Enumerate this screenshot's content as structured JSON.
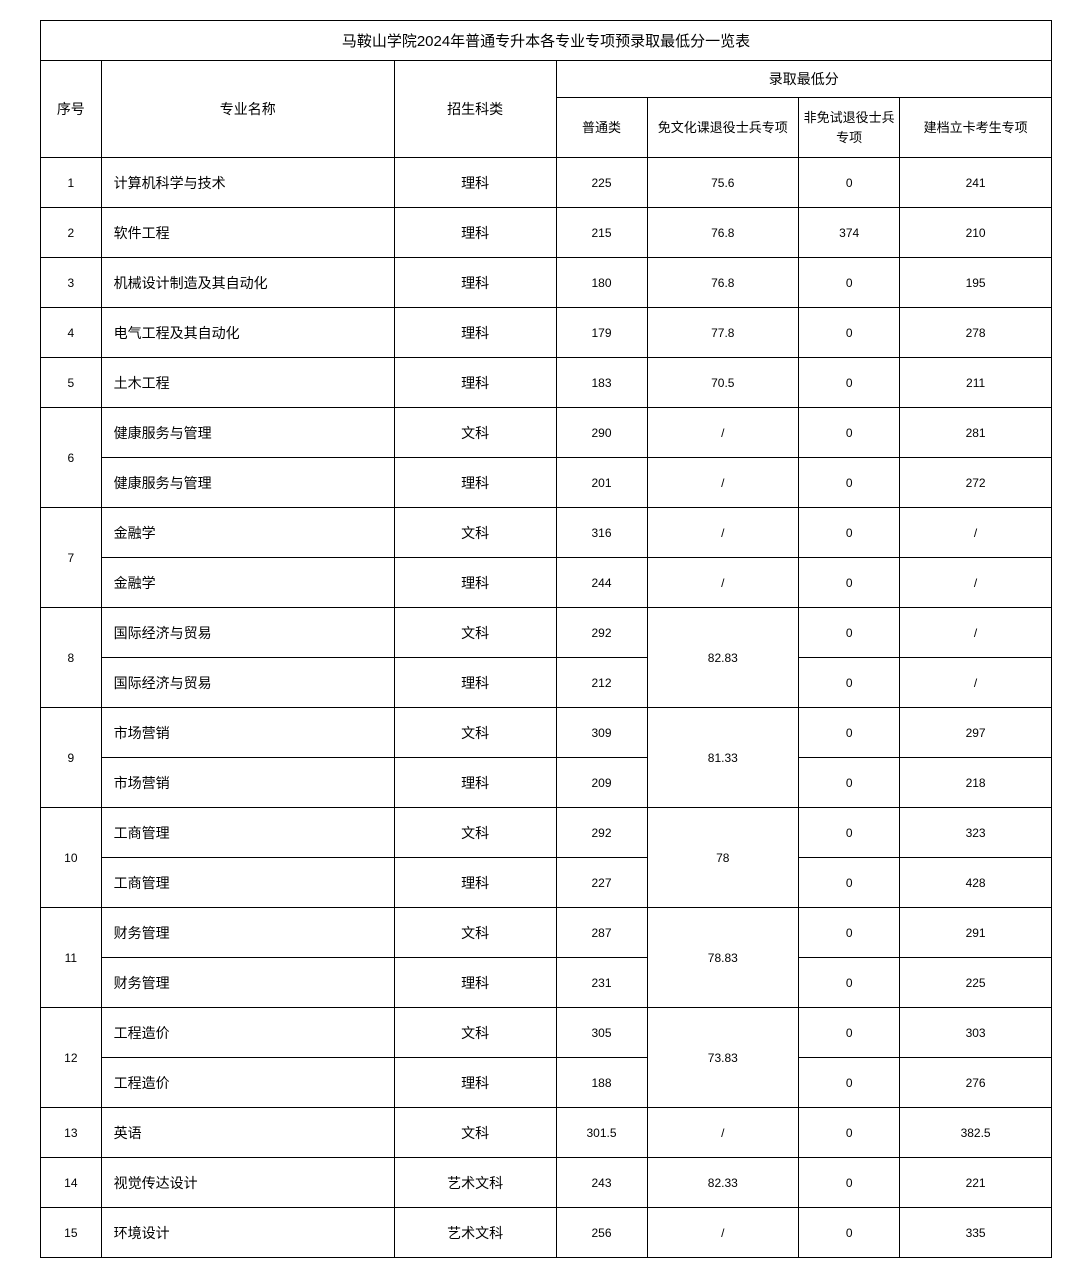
{
  "table": {
    "title": "马鞍山学院2024年普通专升本各专业专项预录取最低分一览表",
    "headers": {
      "seq": "序号",
      "major": "专业名称",
      "category": "招生科类",
      "score_group": "录取最低分",
      "score1": "普通类",
      "score2": "免文化课退役士兵专项",
      "score3": "非免试退役士兵专项",
      "score4": "建档立卡考生专项"
    },
    "rows": [
      {
        "seq": "1",
        "seq_rowspan": 1,
        "major": "计算机科学与技术",
        "category": "理科",
        "s1": "225",
        "s2": "75.6",
        "s2_rowspan": 1,
        "s3": "0",
        "s4": "241"
      },
      {
        "seq": "2",
        "seq_rowspan": 1,
        "major": "软件工程",
        "category": "理科",
        "s1": "215",
        "s2": "76.8",
        "s2_rowspan": 1,
        "s3": "374",
        "s4": "210"
      },
      {
        "seq": "3",
        "seq_rowspan": 1,
        "major": "机械设计制造及其自动化",
        "category": "理科",
        "s1": "180",
        "s2": "76.8",
        "s2_rowspan": 1,
        "s3": "0",
        "s4": "195"
      },
      {
        "seq": "4",
        "seq_rowspan": 1,
        "major": "电气工程及其自动化",
        "category": "理科",
        "s1": "179",
        "s2": "77.8",
        "s2_rowspan": 1,
        "s3": "0",
        "s4": "278"
      },
      {
        "seq": "5",
        "seq_rowspan": 1,
        "major": "土木工程",
        "category": "理科",
        "s1": "183",
        "s2": "70.5",
        "s2_rowspan": 1,
        "s3": "0",
        "s4": "211"
      },
      {
        "seq": "6",
        "seq_rowspan": 2,
        "major": "健康服务与管理",
        "category": "文科",
        "s1": "290",
        "s2": "/",
        "s2_rowspan": 1,
        "s3": "0",
        "s4": "281"
      },
      {
        "seq": null,
        "seq_rowspan": 0,
        "major": "健康服务与管理",
        "category": "理科",
        "s1": "201",
        "s2": "/",
        "s2_rowspan": 1,
        "s3": "0",
        "s4": "272"
      },
      {
        "seq": "7",
        "seq_rowspan": 2,
        "major": "金融学",
        "category": "文科",
        "s1": "316",
        "s2": "/",
        "s2_rowspan": 1,
        "s3": "0",
        "s4": "/"
      },
      {
        "seq": null,
        "seq_rowspan": 0,
        "major": "金融学",
        "category": "理科",
        "s1": "244",
        "s2": "/",
        "s2_rowspan": 1,
        "s3": "0",
        "s4": "/"
      },
      {
        "seq": "8",
        "seq_rowspan": 2,
        "major": "国际经济与贸易",
        "category": "文科",
        "s1": "292",
        "s2": "82.83",
        "s2_rowspan": 2,
        "s3": "0",
        "s4": "/"
      },
      {
        "seq": null,
        "seq_rowspan": 0,
        "major": "国际经济与贸易",
        "category": "理科",
        "s1": "212",
        "s2": null,
        "s2_rowspan": 0,
        "s3": "0",
        "s4": "/"
      },
      {
        "seq": "9",
        "seq_rowspan": 2,
        "major": "市场营销",
        "category": "文科",
        "s1": "309",
        "s2": "81.33",
        "s2_rowspan": 2,
        "s3": "0",
        "s4": "297"
      },
      {
        "seq": null,
        "seq_rowspan": 0,
        "major": "市场营销",
        "category": "理科",
        "s1": "209",
        "s2": null,
        "s2_rowspan": 0,
        "s3": "0",
        "s4": "218"
      },
      {
        "seq": "10",
        "seq_rowspan": 2,
        "major": "工商管理",
        "category": "文科",
        "s1": "292",
        "s2": "78",
        "s2_rowspan": 2,
        "s3": "0",
        "s4": "323"
      },
      {
        "seq": null,
        "seq_rowspan": 0,
        "major": "工商管理",
        "category": "理科",
        "s1": "227",
        "s2": null,
        "s2_rowspan": 0,
        "s3": "0",
        "s4": "428"
      },
      {
        "seq": "11",
        "seq_rowspan": 2,
        "major": "财务管理",
        "category": "文科",
        "s1": "287",
        "s2": "78.83",
        "s2_rowspan": 2,
        "s3": "0",
        "s4": "291"
      },
      {
        "seq": null,
        "seq_rowspan": 0,
        "major": "财务管理",
        "category": "理科",
        "s1": "231",
        "s2": null,
        "s2_rowspan": 0,
        "s3": "0",
        "s4": "225"
      },
      {
        "seq": "12",
        "seq_rowspan": 2,
        "major": "工程造价",
        "category": "文科",
        "s1": "305",
        "s2": "73.83",
        "s2_rowspan": 2,
        "s3": "0",
        "s4": "303"
      },
      {
        "seq": null,
        "seq_rowspan": 0,
        "major": "工程造价",
        "category": "理科",
        "s1": "188",
        "s2": null,
        "s2_rowspan": 0,
        "s3": "0",
        "s4": "276"
      },
      {
        "seq": "13",
        "seq_rowspan": 1,
        "major": "英语",
        "category": "文科",
        "s1": "301.5",
        "s2": "/",
        "s2_rowspan": 1,
        "s3": "0",
        "s4": "382.5"
      },
      {
        "seq": "14",
        "seq_rowspan": 1,
        "major": "视觉传达设计",
        "category": "艺术文科",
        "s1": "243",
        "s2": "82.33",
        "s2_rowspan": 1,
        "s3": "0",
        "s4": "221"
      },
      {
        "seq": "15",
        "seq_rowspan": 1,
        "major": "环境设计",
        "category": "艺术文科",
        "s1": "256",
        "s2": "/",
        "s2_rowspan": 1,
        "s3": "0",
        "s4": "335"
      }
    ]
  }
}
